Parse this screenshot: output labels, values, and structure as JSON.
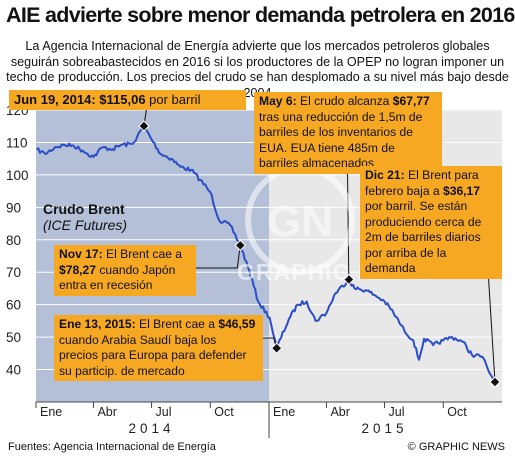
{
  "title": "AIE advierte sobre menor demanda petrolera en 2016",
  "subtitle": "La Agencia Internacional de Energía advierte que los mercados petroleros globales seguirán sobreabastecidos en 2016 si los productores de la OPEP no logran imponer un techo de producción. Los precios del crudo se han desplomado a su nivel más bajo desde 2004",
  "series_label_line1": "Crudo Brent",
  "series_label_line2": "(ICE Futures)",
  "annotations": {
    "jun19": {
      "bold": "Jun 19, 2014: $115,06",
      "text": " por barril"
    },
    "nov17": {
      "bold1": "Nov 17:",
      "text1": " El Brent cae a ",
      "bold2": "$78,27",
      "text2": " cuando Japón entra en recesión"
    },
    "ene13": {
      "bold1": "Ene 13, 2015:",
      "text1": " El Brent cae a ",
      "bold2": "$46,59",
      "text2": " cuando Arabia Saudí baja los precios para Europa para defender su particip. de mercado"
    },
    "may6": {
      "bold1": "May 6:",
      "text1": " El crudo alcanza ",
      "bold2": "$67,77",
      "text2": " tras una reducción de 1,5m de barriles de los inventarios de EUA. EUA tiene 485m de barriles almacenados"
    },
    "dic21": {
      "bold1": "Dic 21:",
      "text1": " El Brent para febrero baja a ",
      "bold2": "$36,17",
      "text2": " por barril. Se están produciendo cerca de 2m de barriles diarios por arriba de la demanda"
    }
  },
  "watermark": "GRAPHIC NEWS",
  "source": "Fuentes: Agencia Internacional de Energía",
  "credit": "© GRAPHIC NEWS",
  "colors": {
    "accent": "#f7a823",
    "line": "#2b4dc8",
    "panel": "#b4bfd8",
    "plot_bg": "#e8e8e8"
  },
  "chart_data": {
    "type": "line",
    "title": "AIE advierte sobre menor demanda petrolera en 2016",
    "ylabel": "",
    "xlabel": "",
    "ylim": [
      30,
      120
    ],
    "yticks": [
      40,
      50,
      60,
      70,
      80,
      90,
      100,
      110,
      120
    ],
    "x_months": [
      "Ene",
      "Abr",
      "Jul",
      "Oct",
      "Ene",
      "Abr",
      "Jul",
      "Oct"
    ],
    "x_years": [
      "2014",
      "2015"
    ],
    "grid": true,
    "series": [
      {
        "name": "Crudo Brent",
        "x": [
          "2014-01-02",
          "2014-01-15",
          "2014-02-01",
          "2014-02-15",
          "2014-03-01",
          "2014-03-15",
          "2014-04-01",
          "2014-04-15",
          "2014-05-01",
          "2014-05-15",
          "2014-06-01",
          "2014-06-19",
          "2014-07-01",
          "2014-07-15",
          "2014-08-01",
          "2014-08-15",
          "2014-09-01",
          "2014-09-15",
          "2014-10-01",
          "2014-10-15",
          "2014-11-01",
          "2014-11-17",
          "2014-12-01",
          "2014-12-15",
          "2015-01-02",
          "2015-01-13",
          "2015-02-01",
          "2015-02-15",
          "2015-03-01",
          "2015-03-15",
          "2015-04-01",
          "2015-04-15",
          "2015-05-06",
          "2015-05-15",
          "2015-06-01",
          "2015-06-15",
          "2015-07-01",
          "2015-07-15",
          "2015-08-01",
          "2015-08-15",
          "2015-08-24",
          "2015-09-01",
          "2015-09-15",
          "2015-10-01",
          "2015-10-15",
          "2015-11-01",
          "2015-11-15",
          "2015-12-01",
          "2015-12-10",
          "2015-12-21"
        ],
        "values": [
          107.8,
          106.5,
          108.6,
          109.2,
          109.0,
          107.5,
          105.5,
          108.5,
          107.9,
          109.3,
          109.5,
          115.06,
          111.0,
          106.5,
          105.0,
          102.5,
          101.5,
          98.5,
          94.7,
          86.0,
          84.5,
          78.27,
          70.5,
          61.0,
          56.0,
          46.59,
          55.5,
          60.0,
          61.0,
          55.0,
          57.5,
          63.5,
          67.77,
          65.0,
          64.5,
          63.0,
          61.0,
          57.5,
          52.0,
          49.0,
          43.0,
          49.5,
          47.5,
          49.0,
          50.0,
          48.5,
          44.5,
          44.0,
          40.0,
          36.17
        ]
      }
    ],
    "annotations": [
      {
        "x": "2014-06-19",
        "y": 115.06
      },
      {
        "x": "2014-11-17",
        "y": 78.27
      },
      {
        "x": "2015-01-13",
        "y": 46.59
      },
      {
        "x": "2015-05-06",
        "y": 67.77
      },
      {
        "x": "2015-12-21",
        "y": 36.17
      }
    ]
  }
}
